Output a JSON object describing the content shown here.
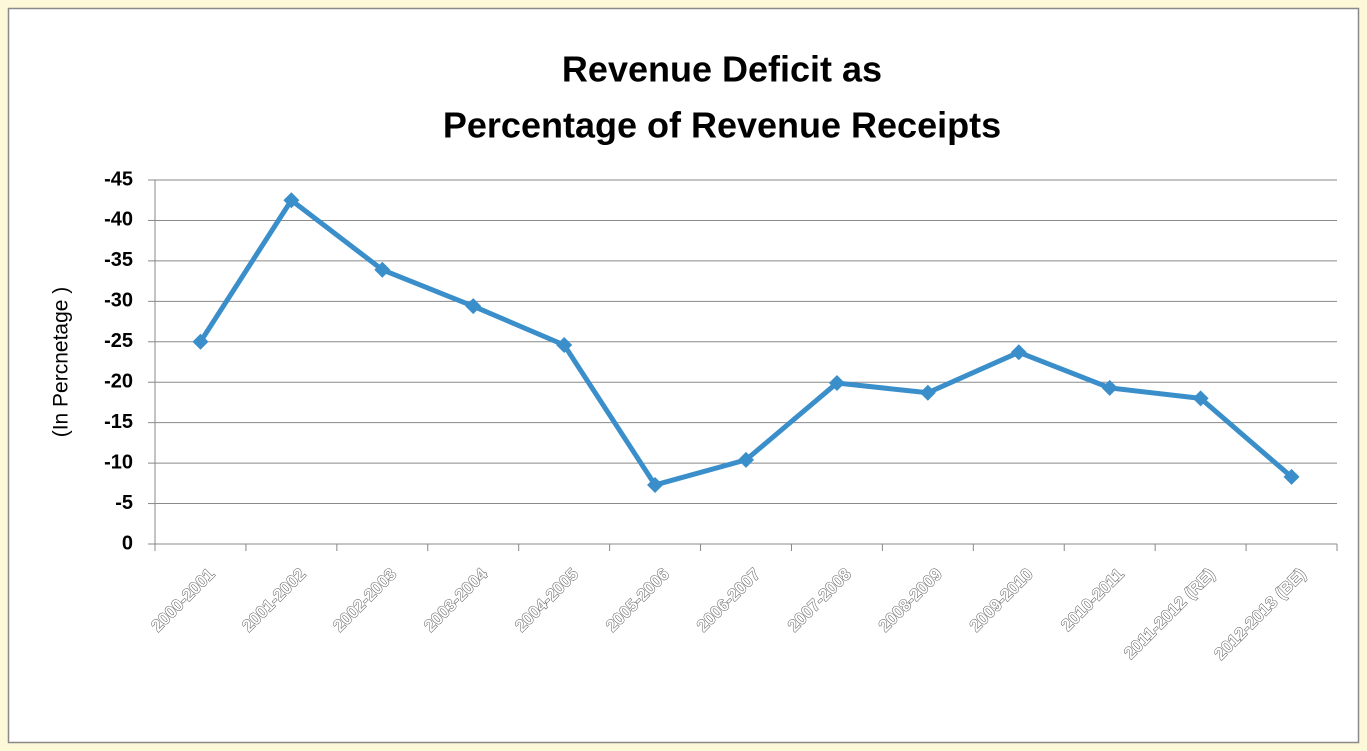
{
  "chart_data": {
    "type": "line",
    "title": [
      "Revenue Deficit as",
      "Percentage of Revenue Receipts"
    ],
    "y_label": "(In Percnetage )",
    "categories": [
      "2000-2001",
      "2001-2002",
      "2002-2003",
      "2003-2004",
      "2004-2005",
      "2005-2006",
      "2006-2007",
      "2007-2008",
      "2008-2009",
      "2009-2010",
      "2010-2011",
      "2011-2012 (RE)",
      "2012-2013 (BE)"
    ],
    "series": [
      {
        "name": "Revenue Deficit",
        "color": "#3a8fcb",
        "values": [
          -25,
          -42.5,
          -33.9,
          -29.4,
          -24.6,
          -7.3,
          -10.4,
          -19.9,
          -18.7,
          -23.7,
          -19.3,
          -18.0,
          -8.3
        ]
      }
    ],
    "ylim": [
      0,
      -45
    ],
    "yticks": [
      0,
      -5,
      -10,
      -15,
      -20,
      -25,
      -30,
      -35,
      -40,
      -45
    ],
    "grid": true
  }
}
